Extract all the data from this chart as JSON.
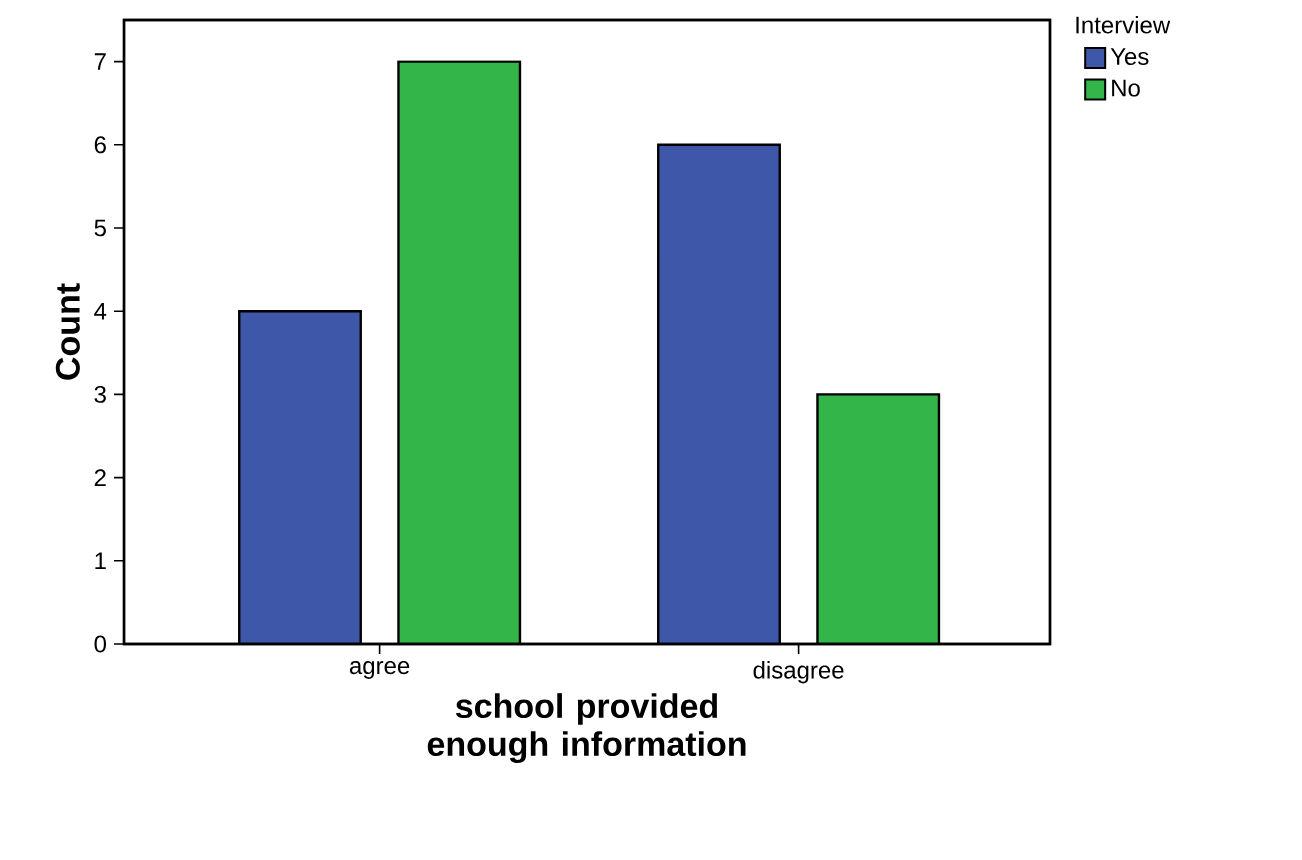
{
  "chart_data": {
    "type": "bar",
    "xlabel": "school provided enough information",
    "ylabel": "Count",
    "legend_title": "Interview",
    "categories": [
      "agree",
      "disagree"
    ],
    "series": [
      {
        "name": "Yes",
        "color": "#3f57a8",
        "values": [
          4,
          6
        ]
      },
      {
        "name": "No",
        "color": "#33b54a",
        "values": [
          7,
          3
        ]
      }
    ],
    "ylim": [
      0,
      7.5
    ],
    "yticks": [
      0,
      1,
      2,
      3,
      4,
      5,
      6,
      7
    ],
    "grid": false,
    "legend": "top right"
  }
}
